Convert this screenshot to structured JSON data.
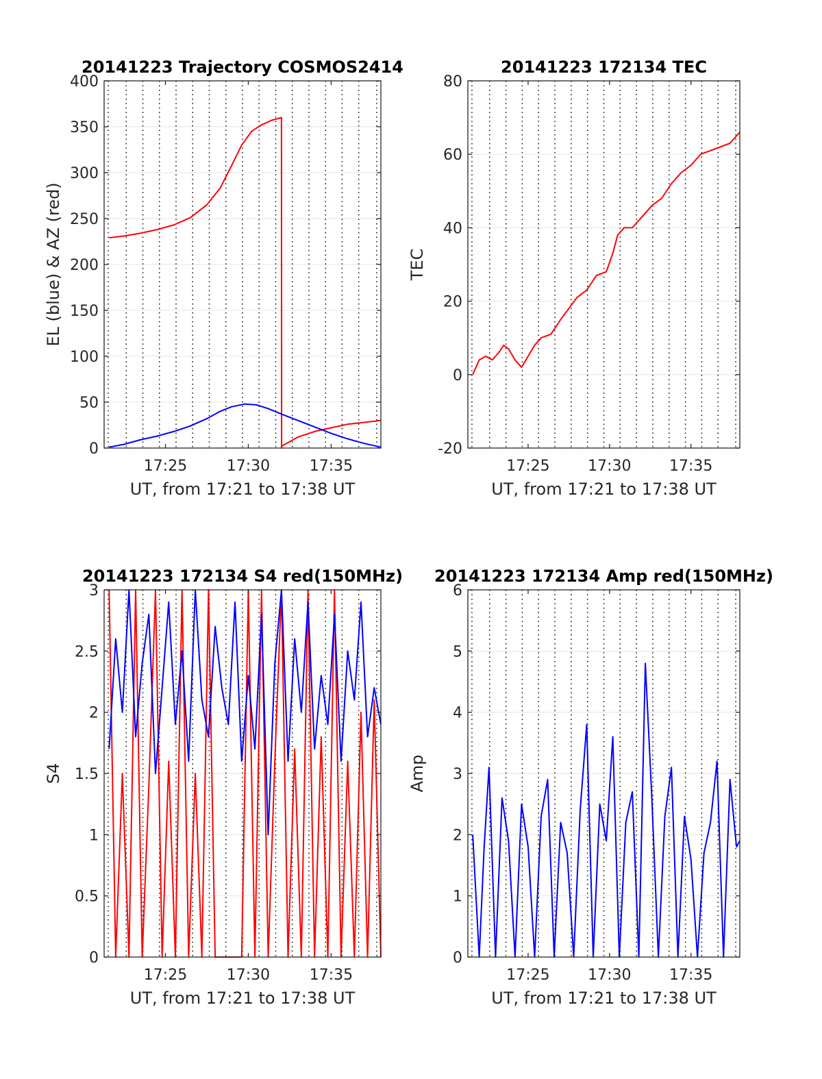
{
  "figure": {
    "title_color": "#000000",
    "panels": [
      "trajectory",
      "tec",
      "s4",
      "amp"
    ]
  },
  "chart_data": [
    {
      "id": "trajectory",
      "type": "line",
      "title": "20141223 Trajectory COSMOS2414",
      "xlabel": "UT, from 17:21 to 17:38 UT",
      "ylabel": "EL (blue) & AZ (red)",
      "x_unit": "minutes after 17:00 UT",
      "xlim": [
        21.3,
        38.0
      ],
      "ylim": [
        0,
        400
      ],
      "x_ticks": [
        25,
        30,
        35
      ],
      "x_tick_labels": [
        "17:25",
        "17:30",
        "17:35"
      ],
      "y_ticks": [
        0,
        50,
        100,
        150,
        200,
        250,
        300,
        350,
        400
      ],
      "y_tick_labels": [
        "0",
        "50",
        "100",
        "150",
        "200",
        "250",
        "300",
        "350",
        "400"
      ],
      "grid": true,
      "series": [
        {
          "color": "#ff0000",
          "x": [
            21.6,
            22.5,
            23.5,
            24.5,
            25.5,
            26.5,
            27.5,
            28.3,
            29.0,
            29.6,
            30.2,
            30.8,
            31.4,
            32.0,
            32.01,
            32.02,
            33.0,
            34.0,
            35.0,
            36.0,
            37.0,
            38.0
          ],
          "y": [
            229,
            231,
            234,
            238,
            243,
            251,
            265,
            283,
            308,
            330,
            345,
            352,
            357,
            360,
            0,
            2,
            12,
            18,
            22,
            26,
            28,
            30
          ]
        },
        {
          "color": "#0000ff",
          "x": [
            21.6,
            22.5,
            23.5,
            24.5,
            25.5,
            26.5,
            27.5,
            28.3,
            29.0,
            29.8,
            30.5,
            31.2,
            32.0,
            33.0,
            34.0,
            35.0,
            36.0,
            37.0,
            38.0
          ],
          "y": [
            1,
            4,
            9,
            13,
            18,
            24,
            32,
            40,
            45,
            48,
            47,
            43,
            37,
            30,
            23,
            16,
            10,
            5,
            1
          ]
        }
      ]
    },
    {
      "id": "tec",
      "type": "line",
      "title": "20141223 172134 TEC",
      "xlabel": "UT, from 17:21 to 17:38 UT",
      "ylabel": "TEC",
      "x_unit": "minutes after 17:00 UT",
      "xlim": [
        21.3,
        38.0
      ],
      "ylim": [
        -20,
        80
      ],
      "x_ticks": [
        25,
        30,
        35
      ],
      "x_tick_labels": [
        "17:25",
        "17:30",
        "17:35"
      ],
      "y_ticks": [
        -20,
        0,
        20,
        40,
        60,
        80
      ],
      "y_tick_labels": [
        "-20",
        "0",
        "20",
        "40",
        "60",
        "80"
      ],
      "grid": true,
      "series": [
        {
          "color": "#ff0000",
          "x": [
            21.6,
            22.0,
            22.4,
            22.8,
            23.2,
            23.5,
            23.8,
            24.2,
            24.6,
            25.0,
            25.4,
            25.8,
            26.4,
            27.0,
            27.5,
            28.0,
            28.6,
            29.2,
            29.8,
            30.2,
            30.5,
            30.9,
            31.4,
            32.0,
            32.6,
            33.2,
            33.8,
            34.4,
            35.0,
            35.6,
            36.2,
            36.8,
            37.4,
            38.0
          ],
          "y": [
            0,
            4,
            5,
            4,
            6,
            8,
            7,
            4,
            2,
            5,
            8,
            10,
            11,
            15,
            18,
            21,
            23,
            27,
            28,
            33,
            38,
            40,
            40,
            43,
            46,
            48,
            52,
            55,
            57,
            60,
            61,
            62,
            63,
            66
          ]
        }
      ]
    },
    {
      "id": "s4",
      "type": "line",
      "title": "20141223 172134 S4 red(150MHz)",
      "xlabel": "UT, from 17:21 to 17:38 UT",
      "ylabel": "S4",
      "x_unit": "minutes after 17:00 UT",
      "xlim": [
        21.3,
        38.0
      ],
      "ylim": [
        0,
        3
      ],
      "x_ticks": [
        25,
        30,
        35
      ],
      "x_tick_labels": [
        "17:25",
        "17:30",
        "17:35"
      ],
      "y_ticks": [
        0,
        0.5,
        1,
        1.5,
        2,
        2.5,
        3
      ],
      "y_tick_labels": [
        "0",
        "0.5",
        "1",
        "1.5",
        "2",
        "2.5",
        "3"
      ],
      "grid": true,
      "series": [
        {
          "color": "#ff0000",
          "x": [
            21.6,
            22.0,
            22.4,
            22.8,
            23.2,
            23.6,
            24.0,
            24.4,
            24.8,
            25.2,
            25.6,
            26.0,
            26.4,
            26.8,
            27.2,
            27.6,
            28.0,
            28.4,
            28.8,
            29.2,
            29.6,
            30.0,
            30.4,
            30.8,
            31.2,
            31.6,
            32.0,
            32.4,
            32.8,
            33.2,
            33.6,
            34.0,
            34.4,
            34.8,
            35.2,
            35.6,
            36.0,
            36.4,
            36.8,
            37.2,
            37.6,
            38.0
          ],
          "y": [
            3.0,
            0.0,
            1.5,
            0.0,
            3.0,
            0.0,
            1.4,
            3.0,
            0.0,
            1.6,
            0.0,
            3.0,
            0.0,
            1.5,
            0.0,
            3.0,
            0.0,
            0.0,
            0.0,
            0.0,
            0.0,
            3.0,
            0.0,
            3.0,
            0.0,
            1.6,
            3.0,
            0.0,
            1.7,
            0.0,
            3.0,
            0.0,
            1.8,
            0.0,
            3.0,
            0.0,
            1.6,
            0.0,
            2.0,
            0.0,
            2.1,
            0.0
          ]
        },
        {
          "color": "#0000ff",
          "x": [
            21.6,
            22.0,
            22.4,
            22.8,
            23.2,
            23.6,
            24.0,
            24.4,
            24.8,
            25.2,
            25.6,
            26.0,
            26.4,
            26.8,
            27.2,
            27.6,
            28.0,
            28.4,
            28.8,
            29.2,
            29.6,
            30.0,
            30.4,
            30.8,
            31.2,
            31.6,
            32.0,
            32.4,
            32.8,
            33.2,
            33.6,
            34.0,
            34.4,
            34.8,
            35.2,
            35.6,
            36.0,
            36.4,
            36.8,
            37.2,
            37.6,
            38.0
          ],
          "y": [
            1.7,
            2.6,
            2.0,
            3.0,
            1.8,
            2.4,
            2.8,
            1.5,
            2.2,
            2.9,
            1.9,
            2.5,
            1.6,
            3.0,
            2.1,
            1.8,
            2.7,
            2.2,
            1.9,
            2.9,
            1.6,
            2.3,
            1.7,
            2.8,
            1.0,
            2.4,
            3.0,
            1.6,
            2.6,
            2.0,
            2.9,
            1.7,
            2.3,
            1.9,
            2.8,
            1.6,
            2.5,
            2.1,
            2.9,
            1.8,
            2.2,
            1.9
          ]
        }
      ]
    },
    {
      "id": "amp",
      "type": "line",
      "title": "20141223 172134 Amp red(150MHz)",
      "xlabel": "UT, from 17:21 to 17:38 UT",
      "ylabel": "Amp",
      "x_unit": "minutes after 17:00 UT",
      "xlim": [
        21.3,
        38.0
      ],
      "ylim": [
        0,
        6
      ],
      "x_ticks": [
        25,
        30,
        35
      ],
      "x_tick_labels": [
        "17:25",
        "17:30",
        "17:35"
      ],
      "y_ticks": [
        0,
        1,
        2,
        3,
        4,
        5,
        6
      ],
      "y_tick_labels": [
        "0",
        "1",
        "2",
        "3",
        "4",
        "5",
        "6"
      ],
      "grid": true,
      "series": [
        {
          "color": "#0000ff",
          "x": [
            21.6,
            22.0,
            22.3,
            22.6,
            23.0,
            23.4,
            23.8,
            24.2,
            24.6,
            25.0,
            25.4,
            25.8,
            26.2,
            26.6,
            27.0,
            27.4,
            27.8,
            28.2,
            28.6,
            29.0,
            29.4,
            29.8,
            30.2,
            30.6,
            31.0,
            31.4,
            31.8,
            32.2,
            32.6,
            33.0,
            33.4,
            33.8,
            34.2,
            34.6,
            35.0,
            35.4,
            35.8,
            36.2,
            36.6,
            37.0,
            37.4,
            37.8,
            38.0
          ],
          "y": [
            2.0,
            0.0,
            1.8,
            3.1,
            0.0,
            2.6,
            1.9,
            0.0,
            2.5,
            1.8,
            0.0,
            2.3,
            2.9,
            0.0,
            2.2,
            1.7,
            0.0,
            2.4,
            3.8,
            0.0,
            2.5,
            1.9,
            3.6,
            0.0,
            2.2,
            2.7,
            0.0,
            4.8,
            2.6,
            0.0,
            2.3,
            3.1,
            0.0,
            2.3,
            1.6,
            0.0,
            1.7,
            2.2,
            3.2,
            0.0,
            2.9,
            1.8,
            1.9
          ]
        }
      ]
    }
  ]
}
